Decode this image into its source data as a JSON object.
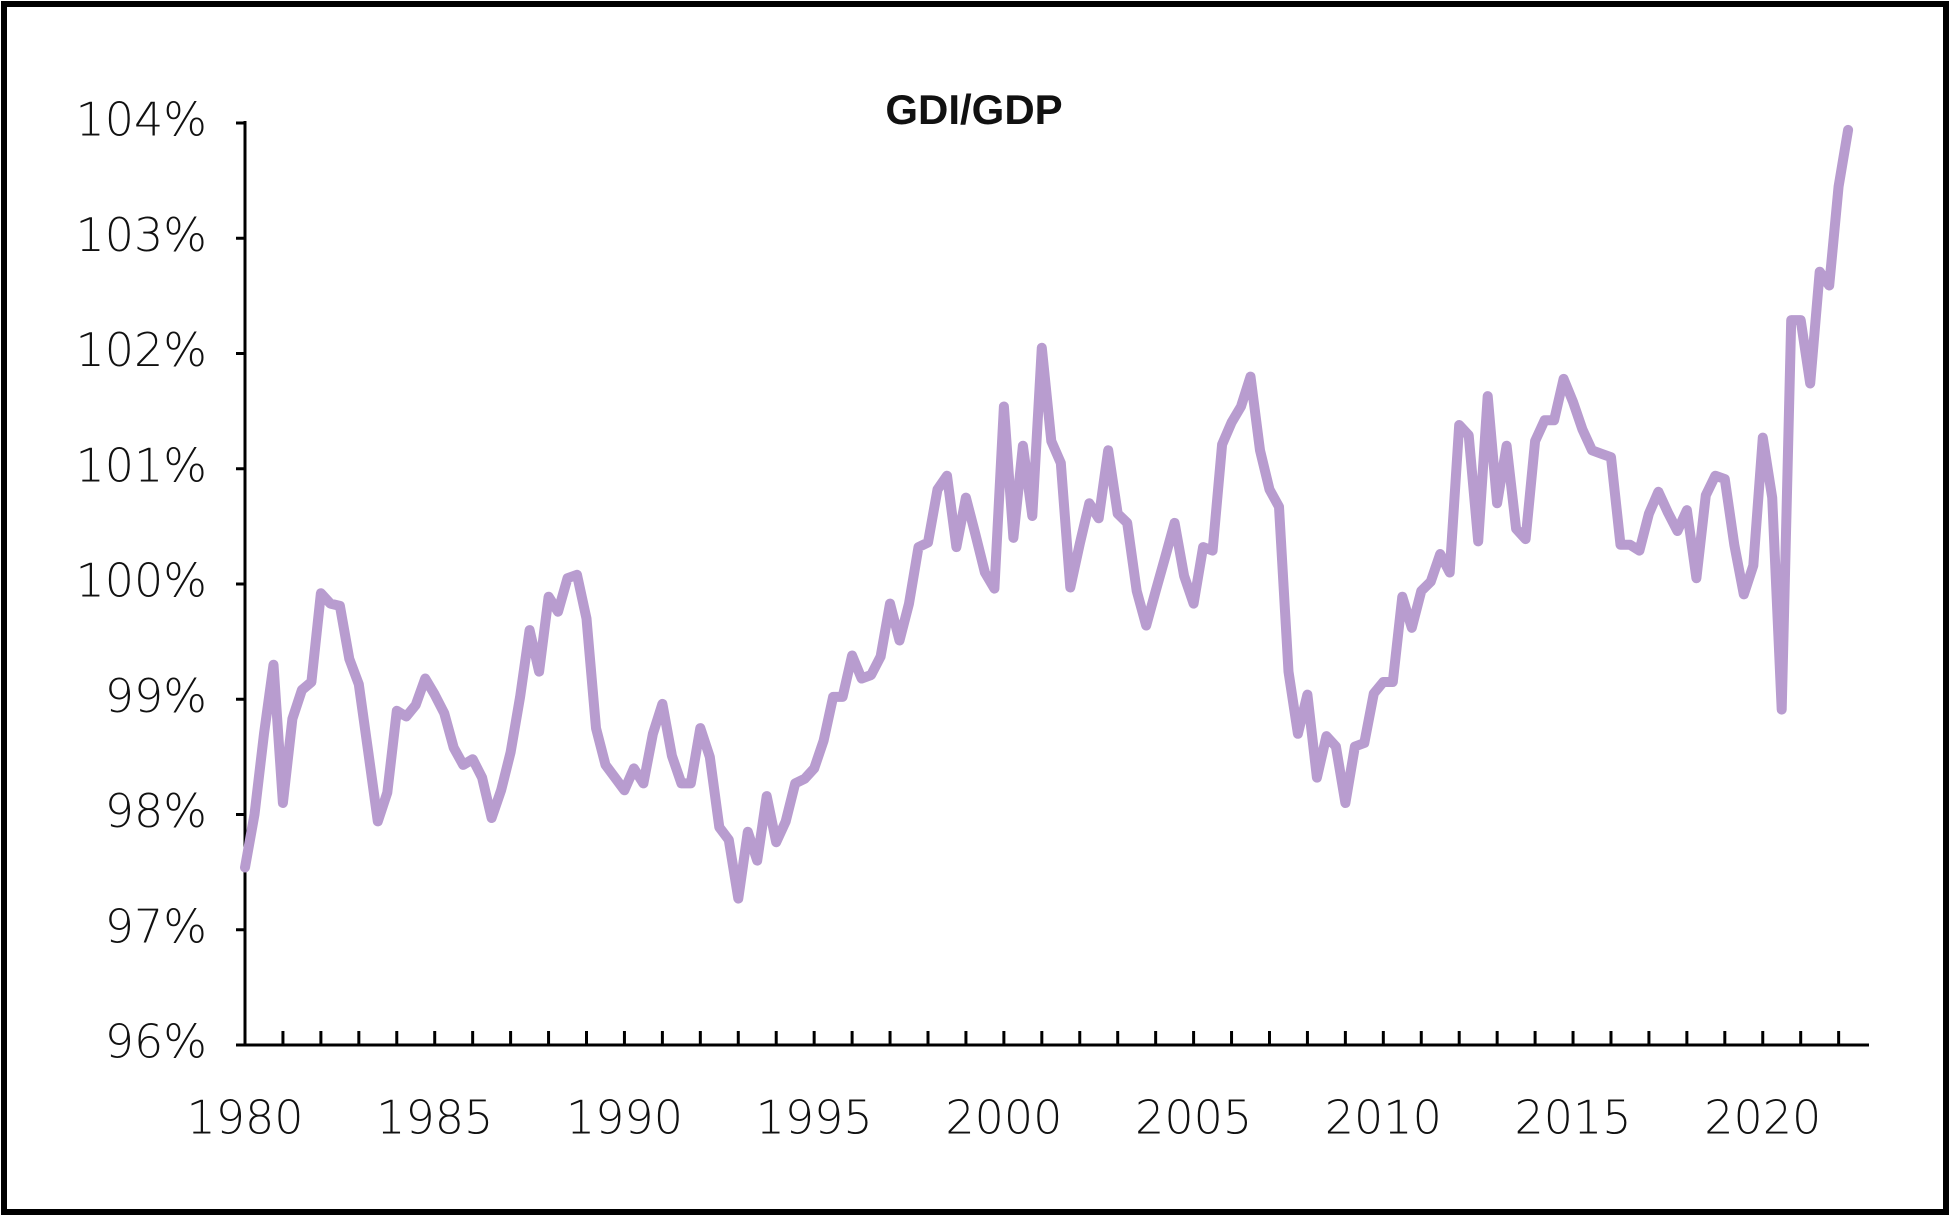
{
  "chart_data": {
    "type": "line",
    "title": "GDI/GDP",
    "color": "#b89ccf",
    "x": [
      1980,
      1980.25,
      1980.5,
      1980.75,
      1981,
      1981.25,
      1981.5,
      1981.75,
      1982,
      1982.25,
      1982.5,
      1982.75,
      1983,
      1983.25,
      1983.5,
      1983.75,
      1984,
      1984.25,
      1984.5,
      1984.75,
      1985,
      1985.25,
      1985.5,
      1985.75,
      1986,
      1986.25,
      1986.5,
      1986.75,
      1987,
      1987.25,
      1987.5,
      1987.75,
      1988,
      1988.25,
      1988.5,
      1988.75,
      1989,
      1989.25,
      1989.5,
      1989.75,
      1990,
      1990.25,
      1990.5,
      1990.75,
      1991,
      1991.25,
      1991.5,
      1991.75,
      1992,
      1992.25,
      1992.5,
      1992.75,
      1993,
      1993.25,
      1993.5,
      1993.75,
      1994,
      1994.25,
      1994.5,
      1994.75,
      1995,
      1995.25,
      1995.5,
      1995.75,
      1996,
      1996.25,
      1996.5,
      1996.75,
      1997,
      1997.25,
      1997.5,
      1997.75,
      1998,
      1998.25,
      1998.5,
      1998.75,
      1999,
      1999.25,
      1999.5,
      1999.75,
      2000,
      2000.25,
      2000.5,
      2000.75,
      2001,
      2001.25,
      2001.5,
      2001.75,
      2002,
      2002.25,
      2002.5,
      2002.75,
      2003,
      2003.25,
      2003.5,
      2003.75,
      2004,
      2004.25,
      2004.5,
      2004.75,
      2005,
      2005.25,
      2005.5,
      2005.75,
      2006,
      2006.25,
      2006.5,
      2006.75,
      2007,
      2007.25,
      2007.5,
      2007.75,
      2008,
      2008.25,
      2008.5,
      2008.75,
      2009,
      2009.25,
      2009.5,
      2009.75,
      2010,
      2010.25,
      2010.5,
      2010.75,
      2011,
      2011.25,
      2011.5,
      2011.75,
      2012,
      2012.25,
      2012.5,
      2012.75,
      2013,
      2013.25,
      2013.5,
      2013.75,
      2014,
      2014.25,
      2014.5,
      2014.75,
      2015,
      2015.25,
      2015.5,
      2015.75,
      2016,
      2016.25,
      2016.5,
      2016.75,
      2017,
      2017.25,
      2017.5,
      2017.75,
      2018,
      2018.25,
      2018.5,
      2018.75,
      2019,
      2019.25,
      2019.5,
      2019.75,
      2020,
      2020.25,
      2020.5,
      2020.75,
      2021,
      2021.25,
      2021.5,
      2021.75,
      2022,
      2022.25
    ],
    "values": [
      97.54,
      98.0,
      98.7,
      99.3,
      98.1,
      98.83,
      99.08,
      99.15,
      99.92,
      99.83,
      99.81,
      99.35,
      99.13,
      98.54,
      97.94,
      98.19,
      98.9,
      98.85,
      98.95,
      99.18,
      99.04,
      98.88,
      98.58,
      98.43,
      98.48,
      98.32,
      97.97,
      98.21,
      98.54,
      99.02,
      99.6,
      99.24,
      99.89,
      99.76,
      100.05,
      100.08,
      99.7,
      98.75,
      98.43,
      98.32,
      98.21,
      98.4,
      98.27,
      98.7,
      98.96,
      98.51,
      98.27,
      98.27,
      98.75,
      98.5,
      97.89,
      97.78,
      97.27,
      97.85,
      97.6,
      98.16,
      97.76,
      97.94,
      98.27,
      98.31,
      98.4,
      98.64,
      99.02,
      99.02,
      99.38,
      99.18,
      99.21,
      99.37,
      99.83,
      99.51,
      99.83,
      100.32,
      100.36,
      100.82,
      100.94,
      100.32,
      100.75,
      100.43,
      100.1,
      99.96,
      101.54,
      100.4,
      101.2,
      100.59,
      102.05,
      101.24,
      101.05,
      99.97,
      100.35,
      100.7,
      100.57,
      101.16,
      100.61,
      100.53,
      99.94,
      99.64,
      99.94,
      100.23,
      100.53,
      100.07,
      99.83,
      100.32,
      100.29,
      101.21,
      101.4,
      101.54,
      101.8,
      101.16,
      100.82,
      100.67,
      99.24,
      98.7,
      99.04,
      98.32,
      98.68,
      98.59,
      98.1,
      98.59,
      98.62,
      99.05,
      99.15,
      99.15,
      99.89,
      99.62,
      99.94,
      100.02,
      100.26,
      100.1,
      101.38,
      101.29,
      100.37,
      101.63,
      100.7,
      101.2,
      100.48,
      100.39,
      101.24,
      101.42,
      101.42,
      101.78,
      101.58,
      101.34,
      101.16,
      101.13,
      101.1,
      100.34,
      100.34,
      100.29,
      100.61,
      100.8,
      100.62,
      100.46,
      100.64,
      100.05,
      100.77,
      100.94,
      100.91,
      100.34,
      99.91,
      100.16,
      101.27,
      100.75,
      98.91,
      102.29,
      102.29,
      101.74,
      102.71,
      102.59,
      103.45,
      103.94
    ],
    "xlim": [
      1980,
      2022.8
    ],
    "xticks": [
      1980,
      1985,
      1990,
      1995,
      2000,
      2005,
      2010,
      2015,
      2020
    ],
    "xminor_ticks": [
      1981,
      1982,
      1983,
      1984,
      1985,
      1986,
      1987,
      1988,
      1989,
      1990,
      1991,
      1992,
      1993,
      1994,
      1995,
      1996,
      1997,
      1998,
      1999,
      2000,
      2001,
      2002,
      2003,
      2004,
      2005,
      2006,
      2007,
      2008,
      2009,
      2010,
      2011,
      2012,
      2013,
      2014,
      2015,
      2016,
      2017,
      2018,
      2019,
      2020,
      2021,
      2022
    ],
    "ylim": [
      96,
      104
    ],
    "yticks": [
      {
        "value": 96,
        "label": "96%"
      },
      {
        "value": 97,
        "label": "97%"
      },
      {
        "value": 98,
        "label": "98%"
      },
      {
        "value": 99,
        "label": "99%"
      },
      {
        "value": 100,
        "label": "100%"
      },
      {
        "value": 101,
        "label": "101%"
      },
      {
        "value": 102,
        "label": "102%"
      },
      {
        "value": 103,
        "label": "103%"
      },
      {
        "value": 104,
        "label": "104%"
      }
    ]
  }
}
